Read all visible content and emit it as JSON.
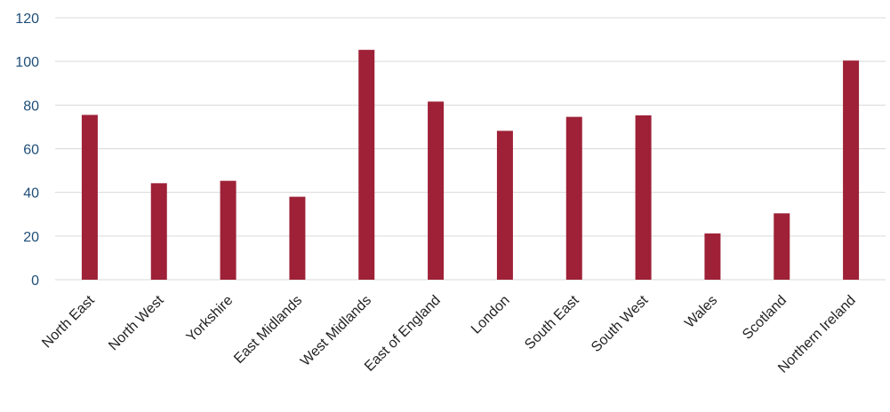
{
  "chart_data": {
    "type": "bar",
    "categories": [
      "North East",
      "North West",
      "Yorkshire",
      "East Midlands",
      "West Midlands",
      "East of England",
      "London",
      "South East",
      "South West",
      "Wales",
      "Scotland",
      "Northern Ireland"
    ],
    "values": [
      75.5,
      44.2,
      45.3,
      38,
      105.3,
      81.6,
      68.2,
      74.6,
      75.3,
      21.2,
      30.4,
      100.4
    ],
    "ylim": [
      0,
      120
    ],
    "yticks": [
      0,
      20,
      40,
      60,
      80,
      100,
      120
    ],
    "grid": true,
    "legend": "none",
    "colors": {
      "bar": "#9e2137",
      "gridline": "#d9d9d9",
      "axis_labels": "#1f4e79",
      "tick_labels": "#222222"
    }
  }
}
